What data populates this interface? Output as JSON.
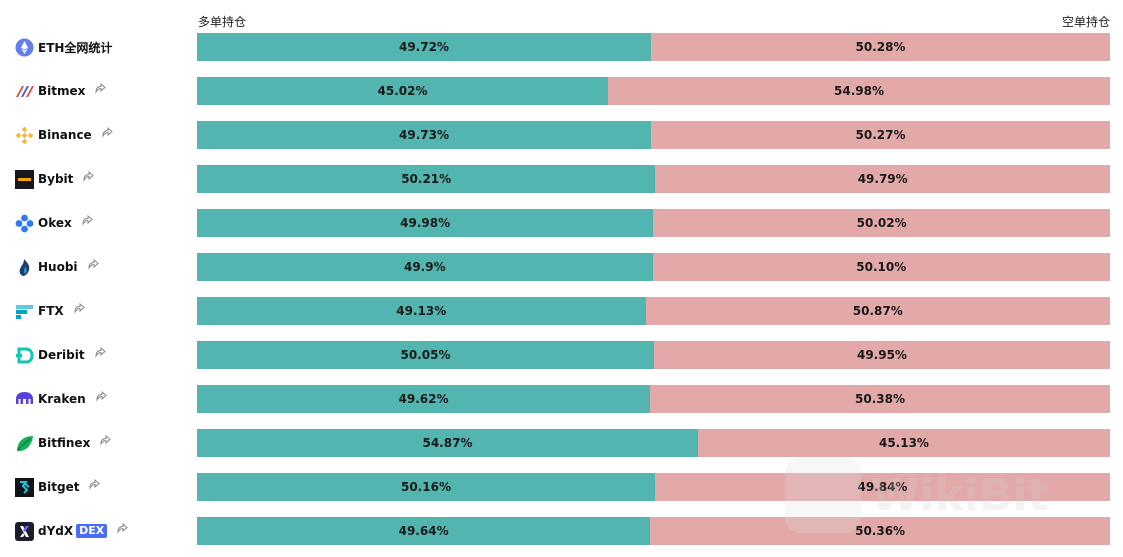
{
  "headers": {
    "long_label": "多单持仓",
    "short_label": "空单持仓"
  },
  "colors": {
    "long": "#52b5af",
    "short": "#e3a9a8"
  },
  "rows": [
    {
      "name": "ETH全网统计",
      "icon": "ethereum-icon",
      "long": "49.72%",
      "short": "50.28%",
      "long_pct": 49.72,
      "share": false
    },
    {
      "name": "Bitmex",
      "icon": "bitmex-icon",
      "long": "45.02%",
      "short": "54.98%",
      "long_pct": 45.02,
      "share": true
    },
    {
      "name": "Binance",
      "icon": "binance-icon",
      "long": "49.73%",
      "short": "50.27%",
      "long_pct": 49.73,
      "share": true
    },
    {
      "name": "Bybit",
      "icon": "bybit-icon",
      "long": "50.21%",
      "short": "49.79%",
      "long_pct": 50.21,
      "share": true
    },
    {
      "name": "Okex",
      "icon": "okex-icon",
      "long": "49.98%",
      "short": "50.02%",
      "long_pct": 49.98,
      "share": true
    },
    {
      "name": "Huobi",
      "icon": "huobi-icon",
      "long": "49.9%",
      "short": "50.10%",
      "long_pct": 49.9,
      "share": true
    },
    {
      "name": "FTX",
      "icon": "ftx-icon",
      "long": "49.13%",
      "short": "50.87%",
      "long_pct": 49.13,
      "share": true
    },
    {
      "name": "Deribit",
      "icon": "deribit-icon",
      "long": "50.05%",
      "short": "49.95%",
      "long_pct": 50.05,
      "share": true
    },
    {
      "name": "Kraken",
      "icon": "kraken-icon",
      "long": "49.62%",
      "short": "50.38%",
      "long_pct": 49.62,
      "share": true
    },
    {
      "name": "Bitfinex",
      "icon": "bitfinex-icon",
      "long": "54.87%",
      "short": "45.13%",
      "long_pct": 54.87,
      "share": true
    },
    {
      "name": "Bitget",
      "icon": "bitget-icon",
      "long": "50.16%",
      "short": "49.84%",
      "long_pct": 50.16,
      "share": true
    },
    {
      "name": "dYdX",
      "icon": "dydx-icon",
      "tag": "DEX",
      "long": "49.64%",
      "short": "50.36%",
      "long_pct": 49.64,
      "share": true
    }
  ],
  "watermark": {
    "text": "WikiBit"
  }
}
